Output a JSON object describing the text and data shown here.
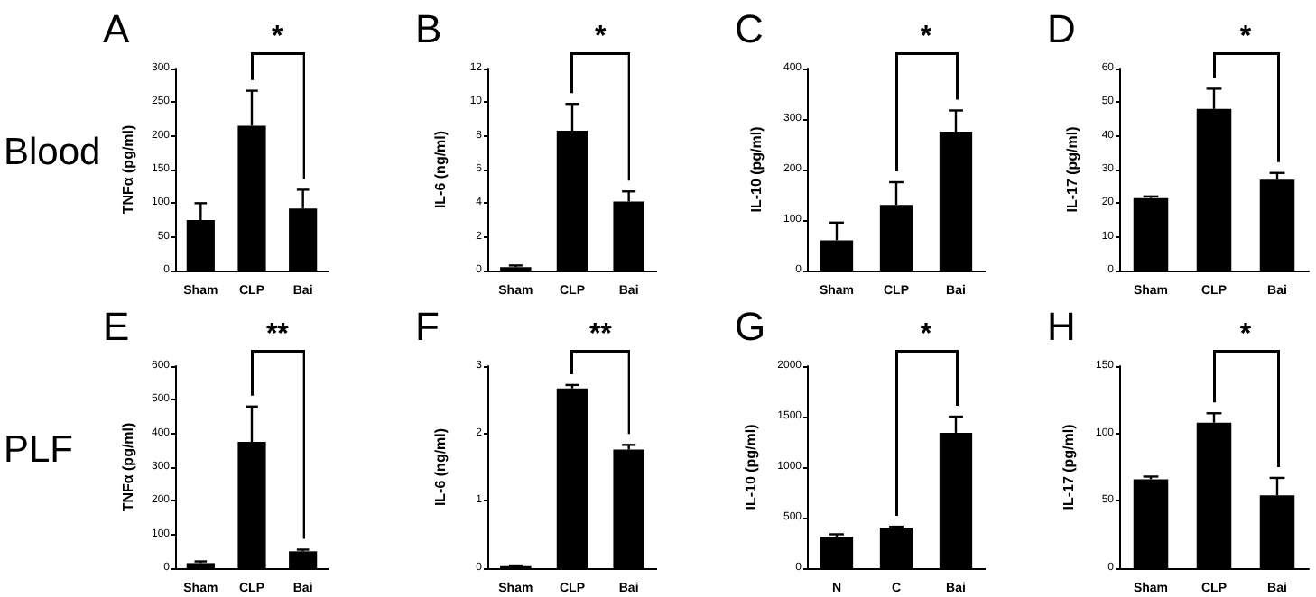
{
  "chart_data": [
    {
      "type": "bar",
      "title": "A",
      "ylabel": "TNFα (pg/ml)",
      "categories": [
        "Sham",
        "CLP",
        "Bai"
      ],
      "values": [
        75,
        215,
        92
      ],
      "errors": [
        [
          75,
          100
        ],
        [
          215,
          267
        ],
        [
          92,
          120
        ]
      ],
      "color": "#000000",
      "ylim": [
        0,
        300
      ],
      "yticks": [
        0,
        50,
        100,
        150,
        200,
        250,
        300
      ],
      "grid": false,
      "annotations": [
        "Blood",
        "*"
      ]
    },
    {
      "type": "bar",
      "title": "B",
      "ylabel": "IL-6 (ng/ml)",
      "categories": [
        "Sham",
        "CLP",
        "Bai"
      ],
      "values": [
        0.2,
        8.3,
        4.1
      ],
      "errors": [
        [
          0.2,
          0.3
        ],
        [
          8.3,
          9.9
        ],
        [
          4.1,
          4.7
        ]
      ],
      "color": "#000000",
      "ylim": [
        0,
        12
      ],
      "yticks": [
        0,
        2,
        4,
        6,
        8,
        10,
        12
      ],
      "grid": false,
      "annotations": [
        "*"
      ]
    },
    {
      "type": "bar",
      "title": "C",
      "ylabel": "IL-10 (pg/ml)",
      "categories": [
        "Sham",
        "CLP",
        "Bai"
      ],
      "values": [
        60,
        130,
        275
      ],
      "errors": [
        [
          60,
          95
        ],
        [
          130,
          175
        ],
        [
          275,
          317
        ]
      ],
      "color": "#000000",
      "ylim": [
        0,
        400
      ],
      "yticks": [
        0,
        100,
        200,
        300,
        400
      ],
      "grid": false,
      "annotations": [
        "*"
      ]
    },
    {
      "type": "bar",
      "title": "D",
      "ylabel": "IL-17 (pg/ml)",
      "categories": [
        "Sham",
        "CLP",
        "Bai"
      ],
      "values": [
        21.5,
        48,
        27
      ],
      "errors": [
        [
          21.5,
          22
        ],
        [
          48,
          54
        ],
        [
          27,
          29
        ]
      ],
      "color": "#000000",
      "ylim": [
        0,
        60
      ],
      "yticks": [
        0,
        10,
        20,
        30,
        40,
        50,
        60
      ],
      "grid": false,
      "annotations": [
        "*"
      ]
    },
    {
      "type": "bar",
      "title": "E",
      "ylabel": "TNFα (pg/ml)",
      "categories": [
        "Sham",
        "CLP",
        "Bai"
      ],
      "values": [
        15,
        375,
        50
      ],
      "errors": [
        [
          15,
          20
        ],
        [
          375,
          480
        ],
        [
          50,
          55
        ]
      ],
      "color": "#000000",
      "ylim": [
        0,
        600
      ],
      "yticks": [
        0,
        100,
        200,
        300,
        400,
        500,
        600
      ],
      "grid": false,
      "annotations": [
        "PLF",
        "**"
      ]
    },
    {
      "type": "bar",
      "title": "F",
      "ylabel": "IL-6 (ng/ml)",
      "categories": [
        "Sham",
        "CLP",
        "Bai"
      ],
      "values": [
        0.03,
        2.67,
        1.76
      ],
      "errors": [
        [
          0.03,
          0.04
        ],
        [
          2.67,
          2.72
        ],
        [
          1.76,
          1.83
        ]
      ],
      "color": "#000000",
      "ylim": [
        0,
        3
      ],
      "yticks": [
        0,
        1,
        2,
        3
      ],
      "grid": false,
      "annotations": [
        "**"
      ]
    },
    {
      "type": "bar",
      "title": "G",
      "ylabel": "IL-10 (pg/ml)",
      "categories": [
        "N",
        "C",
        "Bai"
      ],
      "values": [
        310,
        400,
        1340
      ],
      "errors": [
        [
          310,
          335
        ],
        [
          400,
          410
        ],
        [
          1340,
          1500
        ]
      ],
      "color": "#000000",
      "ylim": [
        0,
        2000
      ],
      "yticks": [
        0,
        500,
        1000,
        1500,
        2000
      ],
      "grid": false,
      "annotations": [
        "*"
      ]
    },
    {
      "type": "bar",
      "title": "H",
      "ylabel": "IL-17 (pg/ml)",
      "categories": [
        "Sham",
        "CLP",
        "Bai"
      ],
      "values": [
        66,
        108,
        54
      ],
      "errors": [
        [
          66,
          68
        ],
        [
          108,
          115
        ],
        [
          54,
          67
        ]
      ],
      "color": "#000000",
      "ylim": [
        0,
        150
      ],
      "yticks": [
        0,
        50,
        100,
        150
      ],
      "grid": false,
      "annotations": [
        "*"
      ]
    }
  ]
}
